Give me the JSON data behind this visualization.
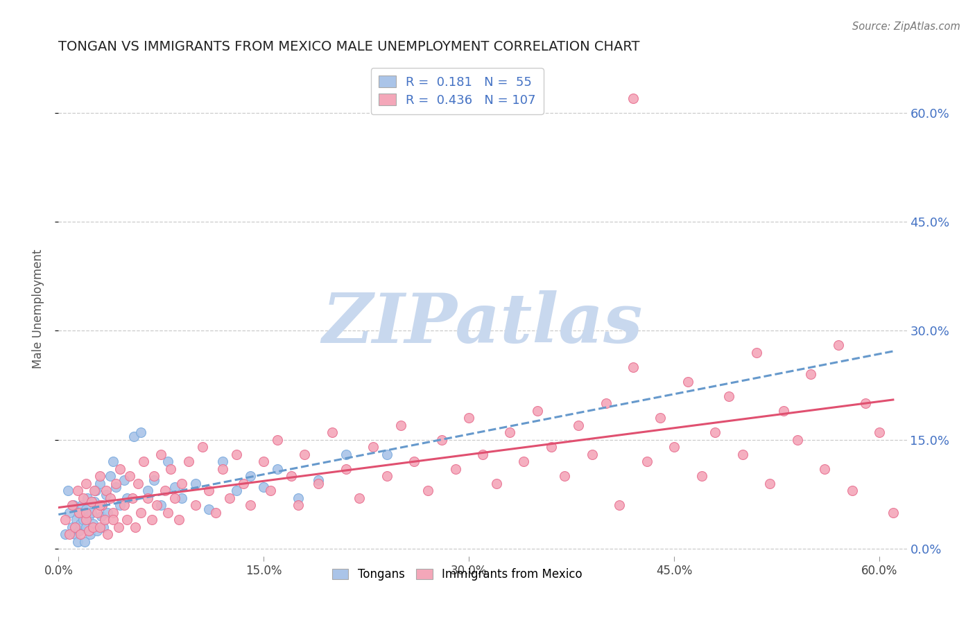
{
  "title": "TONGAN VS IMMIGRANTS FROM MEXICO MALE UNEMPLOYMENT CORRELATION CHART",
  "source": "Source: ZipAtlas.com",
  "ylabel": "Male Unemployment",
  "xlim": [
    0.0,
    0.62
  ],
  "ylim": [
    -0.01,
    0.67
  ],
  "xtick_positions": [
    0.0,
    0.15,
    0.3,
    0.45,
    0.6
  ],
  "xtick_labels": [
    "0.0%",
    "15.0%",
    "30.0%",
    "45.0%",
    "60.0%"
  ],
  "ytick_positions": [
    0.0,
    0.15,
    0.3,
    0.45,
    0.6
  ],
  "ytick_labels": [
    "0.0%",
    "15.0%",
    "30.0%",
    "45.0%",
    "60.0%"
  ],
  "grid_color": "#cccccc",
  "background_color": "#ffffff",
  "tongan_color": "#aac4e8",
  "mexico_color": "#f4a7b9",
  "tongan_edge": "#7aabde",
  "mexico_edge": "#e87090",
  "regression_tongan_color": "#6699cc",
  "regression_mexico_color": "#e05070",
  "watermark": "ZIPatlas",
  "watermark_color": "#c8d8ee",
  "legend_R_tongan": "0.181",
  "legend_N_tongan": "55",
  "legend_R_mexico": "0.436",
  "legend_N_mexico": "107",
  "tongan_x": [
    0.005,
    0.007,
    0.008,
    0.01,
    0.011,
    0.012,
    0.013,
    0.014,
    0.015,
    0.015,
    0.016,
    0.017,
    0.018,
    0.019,
    0.02,
    0.02,
    0.021,
    0.022,
    0.023,
    0.024,
    0.025,
    0.026,
    0.027,
    0.028,
    0.03,
    0.031,
    0.032,
    0.033,
    0.035,
    0.036,
    0.038,
    0.04,
    0.042,
    0.045,
    0.048,
    0.05,
    0.055,
    0.06,
    0.065,
    0.07,
    0.075,
    0.08,
    0.085,
    0.09,
    0.1,
    0.11,
    0.12,
    0.13,
    0.14,
    0.15,
    0.16,
    0.175,
    0.19,
    0.21,
    0.24
  ],
  "tongan_y": [
    0.02,
    0.08,
    0.05,
    0.03,
    0.06,
    0.02,
    0.04,
    0.01,
    0.05,
    0.025,
    0.035,
    0.06,
    0.04,
    0.01,
    0.055,
    0.03,
    0.07,
    0.045,
    0.02,
    0.05,
    0.035,
    0.065,
    0.08,
    0.025,
    0.09,
    0.045,
    0.06,
    0.03,
    0.075,
    0.05,
    0.1,
    0.12,
    0.085,
    0.06,
    0.095,
    0.07,
    0.155,
    0.16,
    0.08,
    0.095,
    0.06,
    0.12,
    0.085,
    0.07,
    0.09,
    0.055,
    0.12,
    0.08,
    0.1,
    0.085,
    0.11,
    0.07,
    0.095,
    0.13,
    0.13
  ],
  "mexico_x": [
    0.005,
    0.008,
    0.01,
    0.012,
    0.014,
    0.015,
    0.016,
    0.018,
    0.02,
    0.02,
    0.022,
    0.024,
    0.025,
    0.026,
    0.028,
    0.03,
    0.03,
    0.032,
    0.034,
    0.035,
    0.036,
    0.038,
    0.04,
    0.042,
    0.044,
    0.045,
    0.048,
    0.05,
    0.052,
    0.054,
    0.056,
    0.058,
    0.06,
    0.062,
    0.065,
    0.068,
    0.07,
    0.072,
    0.075,
    0.078,
    0.08,
    0.082,
    0.085,
    0.088,
    0.09,
    0.095,
    0.1,
    0.105,
    0.11,
    0.115,
    0.12,
    0.125,
    0.13,
    0.135,
    0.14,
    0.15,
    0.155,
    0.16,
    0.17,
    0.175,
    0.18,
    0.19,
    0.2,
    0.21,
    0.22,
    0.23,
    0.24,
    0.25,
    0.26,
    0.27,
    0.28,
    0.29,
    0.3,
    0.31,
    0.32,
    0.33,
    0.34,
    0.35,
    0.36,
    0.37,
    0.38,
    0.39,
    0.4,
    0.41,
    0.42,
    0.43,
    0.44,
    0.45,
    0.46,
    0.47,
    0.48,
    0.49,
    0.5,
    0.51,
    0.52,
    0.53,
    0.54,
    0.55,
    0.56,
    0.57,
    0.58,
    0.59,
    0.6,
    0.61,
    0.02,
    0.03,
    0.04
  ],
  "mexico_y": [
    0.04,
    0.02,
    0.06,
    0.03,
    0.08,
    0.05,
    0.02,
    0.07,
    0.04,
    0.09,
    0.025,
    0.065,
    0.03,
    0.08,
    0.05,
    0.03,
    0.1,
    0.06,
    0.04,
    0.08,
    0.02,
    0.07,
    0.05,
    0.09,
    0.03,
    0.11,
    0.06,
    0.04,
    0.1,
    0.07,
    0.03,
    0.09,
    0.05,
    0.12,
    0.07,
    0.04,
    0.1,
    0.06,
    0.13,
    0.08,
    0.05,
    0.11,
    0.07,
    0.04,
    0.09,
    0.12,
    0.06,
    0.14,
    0.08,
    0.05,
    0.11,
    0.07,
    0.13,
    0.09,
    0.06,
    0.12,
    0.08,
    0.15,
    0.1,
    0.06,
    0.13,
    0.09,
    0.16,
    0.11,
    0.07,
    0.14,
    0.1,
    0.17,
    0.12,
    0.08,
    0.15,
    0.11,
    0.18,
    0.13,
    0.09,
    0.16,
    0.12,
    0.19,
    0.14,
    0.1,
    0.17,
    0.13,
    0.2,
    0.06,
    0.25,
    0.12,
    0.18,
    0.14,
    0.23,
    0.1,
    0.16,
    0.21,
    0.13,
    0.27,
    0.09,
    0.19,
    0.15,
    0.24,
    0.11,
    0.28,
    0.08,
    0.2,
    0.16,
    0.05,
    0.05,
    0.06,
    0.04
  ],
  "mexico_outlier_x": [
    0.42
  ],
  "mexico_outlier_y": [
    0.62
  ]
}
